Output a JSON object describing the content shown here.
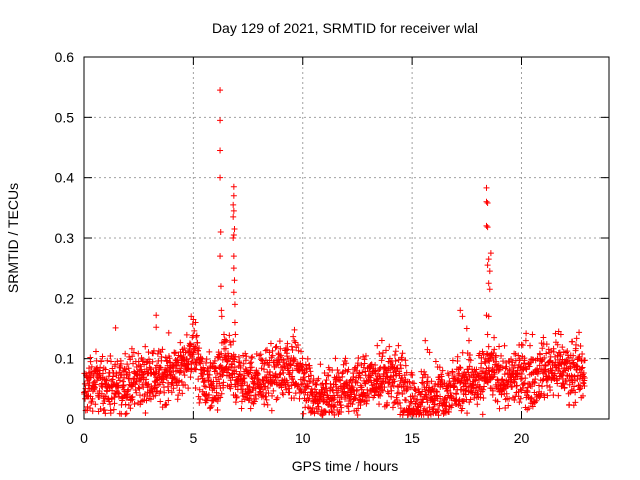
{
  "chart_data": {
    "type": "scatter",
    "title": "Day 129 of 2021, SRMTID for receiver wlal",
    "xlabel": "GPS time / hours",
    "ylabel": "SRMTID / TECUs",
    "xlim": [
      0,
      24
    ],
    "ylim": [
      0,
      0.6
    ],
    "xticks": [
      0,
      5,
      10,
      15,
      20
    ],
    "xtick_labels": [
      "0",
      "5",
      "10",
      "15",
      "20"
    ],
    "yticks": [
      0,
      0.1,
      0.2,
      0.3,
      0.4,
      0.5,
      0.6
    ],
    "ytick_labels": [
      "0",
      "0.1",
      "0.2",
      "0.3",
      "0.4",
      "0.5",
      "0.6"
    ],
    "grid": true,
    "marker": "plus",
    "color": "#ff0000",
    "baseline": [
      [
        0.0,
        0.04
      ],
      [
        0.5,
        0.06
      ],
      [
        1.0,
        0.055
      ],
      [
        1.5,
        0.05
      ],
      [
        2.0,
        0.06
      ],
      [
        2.5,
        0.065
      ],
      [
        3.0,
        0.07
      ],
      [
        3.5,
        0.07
      ],
      [
        4.0,
        0.075
      ],
      [
        4.5,
        0.085
      ],
      [
        5.0,
        0.11
      ],
      [
        5.5,
        0.06
      ],
      [
        6.0,
        0.05
      ],
      [
        6.5,
        0.09
      ],
      [
        7.0,
        0.07
      ],
      [
        7.5,
        0.06
      ],
      [
        8.0,
        0.065
      ],
      [
        8.5,
        0.065
      ],
      [
        9.0,
        0.08
      ],
      [
        9.5,
        0.085
      ],
      [
        10.0,
        0.06
      ],
      [
        10.5,
        0.04
      ],
      [
        11.0,
        0.035
      ],
      [
        11.5,
        0.04
      ],
      [
        12.0,
        0.05
      ],
      [
        12.5,
        0.05
      ],
      [
        13.0,
        0.06
      ],
      [
        13.5,
        0.07
      ],
      [
        14.0,
        0.065
      ],
      [
        14.5,
        0.06
      ],
      [
        15.0,
        0.025
      ],
      [
        15.5,
        0.03
      ],
      [
        16.0,
        0.045
      ],
      [
        16.5,
        0.04
      ],
      [
        17.0,
        0.05
      ],
      [
        17.5,
        0.065
      ],
      [
        18.0,
        0.055
      ],
      [
        18.5,
        0.08
      ],
      [
        19.0,
        0.07
      ],
      [
        19.5,
        0.06
      ],
      [
        20.0,
        0.07
      ],
      [
        20.5,
        0.065
      ],
      [
        21.0,
        0.08
      ],
      [
        21.5,
        0.09
      ],
      [
        22.0,
        0.08
      ],
      [
        22.5,
        0.075
      ],
      [
        22.9,
        0.07
      ]
    ],
    "n_points": 2300,
    "spikes": [
      {
        "x": 6.22,
        "y": 0.545
      },
      {
        "x": 6.22,
        "y": 0.495
      },
      {
        "x": 6.22,
        "y": 0.445
      },
      {
        "x": 6.22,
        "y": 0.4
      },
      {
        "x": 6.25,
        "y": 0.31
      },
      {
        "x": 6.22,
        "y": 0.27
      },
      {
        "x": 6.26,
        "y": 0.22
      },
      {
        "x": 6.28,
        "y": 0.18
      },
      {
        "x": 6.3,
        "y": 0.17
      },
      {
        "x": 6.4,
        "y": 0.14
      },
      {
        "x": 6.5,
        "y": 0.13
      },
      {
        "x": 6.85,
        "y": 0.385
      },
      {
        "x": 6.85,
        "y": 0.37
      },
      {
        "x": 6.82,
        "y": 0.355
      },
      {
        "x": 6.85,
        "y": 0.345
      },
      {
        "x": 6.82,
        "y": 0.335
      },
      {
        "x": 6.88,
        "y": 0.315
      },
      {
        "x": 6.85,
        "y": 0.305
      },
      {
        "x": 6.82,
        "y": 0.3
      },
      {
        "x": 6.85,
        "y": 0.27
      },
      {
        "x": 6.85,
        "y": 0.25
      },
      {
        "x": 6.88,
        "y": 0.23
      },
      {
        "x": 6.85,
        "y": 0.21
      },
      {
        "x": 6.9,
        "y": 0.19
      },
      {
        "x": 6.9,
        "y": 0.16
      },
      {
        "x": 6.92,
        "y": 0.14
      },
      {
        "x": 3.3,
        "y": 0.172
      },
      {
        "x": 3.3,
        "y": 0.152
      },
      {
        "x": 4.9,
        "y": 0.17
      },
      {
        "x": 5.0,
        "y": 0.165
      },
      {
        "x": 5.1,
        "y": 0.16
      },
      {
        "x": 18.4,
        "y": 0.383
      },
      {
        "x": 18.4,
        "y": 0.36
      },
      {
        "x": 18.45,
        "y": 0.358
      },
      {
        "x": 18.4,
        "y": 0.32
      },
      {
        "x": 18.45,
        "y": 0.318
      },
      {
        "x": 18.6,
        "y": 0.275
      },
      {
        "x": 18.5,
        "y": 0.265
      },
      {
        "x": 18.45,
        "y": 0.255
      },
      {
        "x": 18.55,
        "y": 0.245
      },
      {
        "x": 18.5,
        "y": 0.225
      },
      {
        "x": 18.55,
        "y": 0.215
      },
      {
        "x": 18.4,
        "y": 0.172
      },
      {
        "x": 18.5,
        "y": 0.17
      },
      {
        "x": 18.45,
        "y": 0.14
      },
      {
        "x": 18.5,
        "y": 0.12
      },
      {
        "x": 17.2,
        "y": 0.18
      },
      {
        "x": 17.3,
        "y": 0.17
      },
      {
        "x": 17.5,
        "y": 0.15
      },
      {
        "x": 17.6,
        "y": 0.13
      },
      {
        "x": 15.6,
        "y": 0.13
      },
      {
        "x": 15.7,
        "y": 0.115
      },
      {
        "x": 21.7,
        "y": 0.145
      },
      {
        "x": 21.8,
        "y": 0.14
      },
      {
        "x": 20.2,
        "y": 0.13
      },
      {
        "x": 20.5,
        "y": 0.14
      },
      {
        "x": 21.0,
        "y": 0.135
      },
      {
        "x": 13.5,
        "y": 0.108
      },
      {
        "x": 9.5,
        "y": 0.12
      },
      {
        "x": 9.3,
        "y": 0.125
      },
      {
        "x": 8.8,
        "y": 0.12
      },
      {
        "x": 2.9,
        "y": 0.095
      },
      {
        "x": 0.3,
        "y": 0.095
      },
      {
        "x": 0.6,
        "y": 0.085
      }
    ]
  }
}
